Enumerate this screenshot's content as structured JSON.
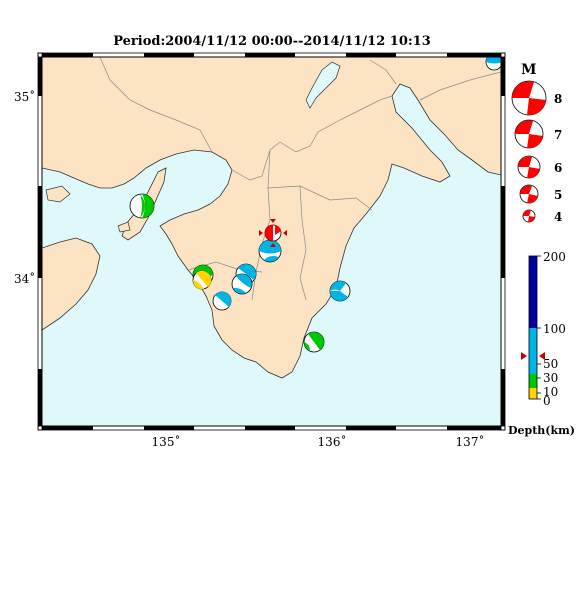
{
  "title": "Period:2004/11/12 00:00--2014/11/12 10:13",
  "colors": {
    "sea": "#dff9fb",
    "land": "#fbe3c4",
    "coast": "#333333",
    "border": "#8a8a8a",
    "compression": "#ff0000",
    "depth_scale": [
      "#ffd400",
      "#00c800",
      "#00b4e6",
      "#0000a0"
    ]
  },
  "map": {
    "lat_label_top": "35˚",
    "lat_label_bottom": "34˚",
    "lon_labels": [
      "135˚",
      "136˚",
      "137˚"
    ]
  },
  "legend": {
    "title": "M",
    "magnitudes": [
      "8",
      "7",
      "6",
      "5",
      "4"
    ]
  },
  "depth_scale": {
    "label": "Depth(km)",
    "ticks": [
      "200",
      "100",
      "50",
      "30",
      "10",
      "0"
    ],
    "current_marker_depth": 50
  },
  "events": [
    {
      "name": "event-awaji",
      "depth_class": "green",
      "magnitude": 5.0
    },
    {
      "name": "event-wakayama-north",
      "depth_class": "green",
      "magnitude": 4.6
    },
    {
      "name": "event-wakayama-shallow",
      "depth_class": "yellow",
      "magnitude": 4.3
    },
    {
      "name": "event-kii-central-1",
      "depth_class": "cyan",
      "magnitude": 4.9
    },
    {
      "name": "event-kii-central-2",
      "depth_class": "cyan",
      "magnitude": 4.7
    },
    {
      "name": "event-kii-central-3",
      "depth_class": "cyan",
      "magnitude": 4.6
    },
    {
      "name": "event-kii-west",
      "depth_class": "cyan",
      "magnitude": 4.6
    },
    {
      "name": "event-latest-nara",
      "depth_class": "red",
      "magnitude": 4.5
    },
    {
      "name": "event-nara-south",
      "depth_class": "cyan",
      "magnitude": 5.0
    },
    {
      "name": "event-kumano",
      "depth_class": "cyan",
      "magnitude": 4.9
    },
    {
      "name": "event-shionomisaki",
      "depth_class": "green",
      "magnitude": 4.7
    },
    {
      "name": "event-aichi-corner",
      "depth_class": "cyan",
      "magnitude": 4.3
    }
  ]
}
